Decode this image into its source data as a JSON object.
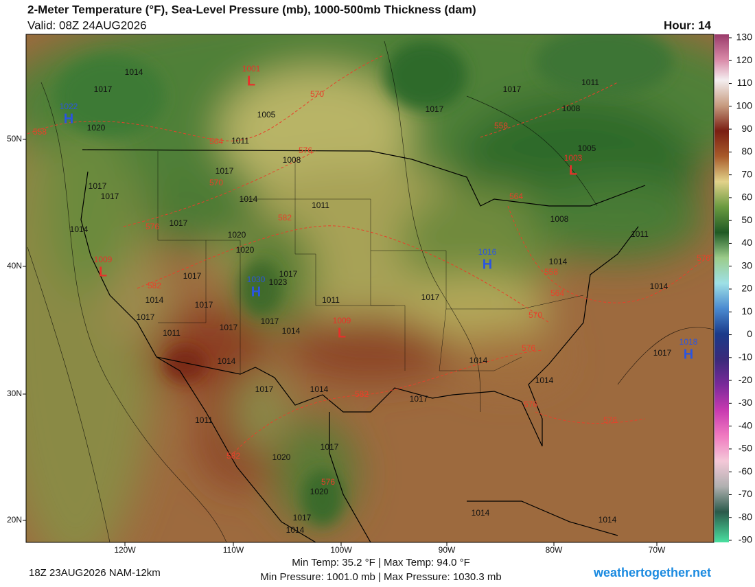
{
  "header": {
    "title": "2-Meter Temperature (°F), Sea-Level Pressure (mb), 1000-500mb Thickness (dam)",
    "valid": "Valid: 08Z 24AUG2026",
    "hour": "Hour: 14"
  },
  "colorbar": {
    "ticks": [
      130,
      120,
      110,
      100,
      90,
      80,
      70,
      60,
      50,
      40,
      30,
      20,
      10,
      0,
      -10,
      -20,
      -30,
      -40,
      -50,
      -60,
      -70,
      -80,
      -90
    ]
  },
  "latitude_labels": [
    "50N",
    "40N",
    "30N",
    "20N"
  ],
  "longitude_labels": [
    "120W",
    "110W",
    "100W",
    "90W",
    "80W",
    "70W"
  ],
  "pressure_centers": [
    {
      "letter": "L",
      "pressure": 1001
    },
    {
      "letter": "H",
      "pressure": 1022
    },
    {
      "letter": "L",
      "pressure": 1009
    },
    {
      "letter": "H",
      "pressure": 1030
    },
    {
      "letter": "H",
      "pressure": 1016
    },
    {
      "letter": "L",
      "pressure": 1009
    },
    {
      "letter": "L",
      "pressure": 1003
    },
    {
      "letter": "H",
      "pressure": 1018
    }
  ],
  "isobar_labels": [
    1014,
    1017,
    1020,
    1005,
    1011,
    1008,
    1017,
    1014,
    1011,
    1017,
    1017,
    1014,
    1017,
    1020,
    1020,
    1023,
    1017,
    1017,
    1014,
    1017,
    1017,
    1011,
    1017,
    1017,
    1014,
    1011,
    1014,
    1017,
    1014,
    1011,
    1020,
    1017,
    1020,
    1017,
    1014,
    1014,
    1014,
    1014,
    1014,
    1017,
    1014,
    1014,
    1011,
    1008,
    1005,
    1008,
    1011,
    1017,
    1017,
    1017,
    1017
  ],
  "thickness_labels": [
    558,
    564,
    570,
    576,
    570,
    576,
    582,
    582,
    558,
    564,
    570,
    576,
    582,
    582,
    576,
    576,
    576,
    570,
    564,
    558
  ],
  "footer": {
    "run": "18Z 23AUG2026 NAM-12km",
    "temp_range": "Min Temp:  35.2 °F | Max Temp:  94.0 °F",
    "pressure_range": "Min Pressure: 1001.0 mb | Max Pressure: 1030.3 mb",
    "site": "weathertogether.net"
  }
}
